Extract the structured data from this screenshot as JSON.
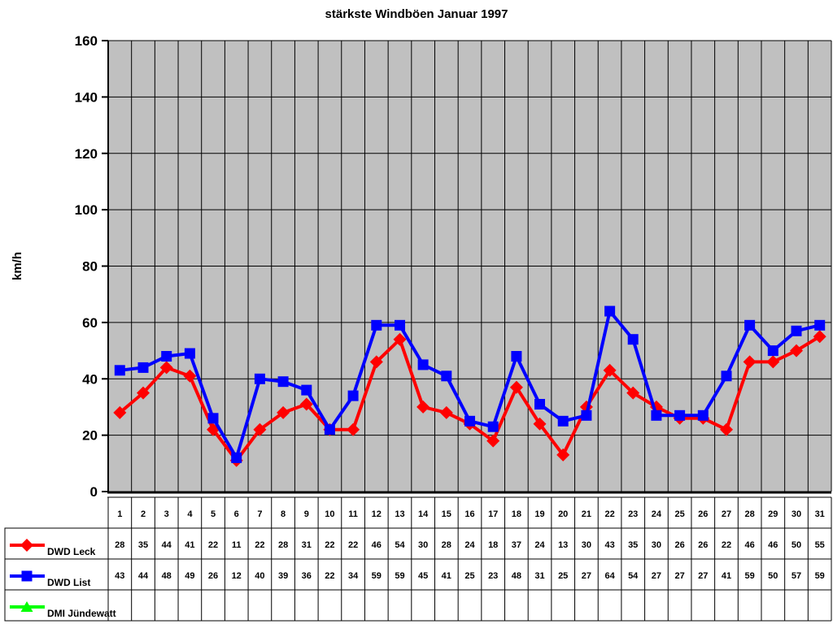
{
  "chart_data": {
    "type": "line",
    "title": "stärkste Windböen Januar 1997",
    "xlabel": "",
    "ylabel": "km/h",
    "ylim": [
      0,
      160
    ],
    "ytick_step": 20,
    "grid": "both",
    "plot_bg": "#c0c0c0",
    "gridline_color": "#000000",
    "legend_position": "bottom-left-table",
    "x": [
      1,
      2,
      3,
      4,
      5,
      6,
      7,
      8,
      9,
      10,
      11,
      12,
      13,
      14,
      15,
      16,
      17,
      18,
      19,
      20,
      21,
      22,
      23,
      24,
      25,
      26,
      27,
      28,
      29,
      30,
      31
    ],
    "series": [
      {
        "name": "DWD Leck",
        "color": "#ff0000",
        "marker": "diamond",
        "values": [
          28,
          35,
          44,
          41,
          22,
          11,
          22,
          28,
          31,
          22,
          22,
          46,
          54,
          30,
          28,
          24,
          18,
          37,
          24,
          13,
          30,
          43,
          35,
          30,
          26,
          26,
          22,
          46,
          46,
          50,
          55
        ]
      },
      {
        "name": "DWD List",
        "color": "#0000ff",
        "marker": "square",
        "values": [
          43,
          44,
          48,
          49,
          26,
          12,
          40,
          39,
          36,
          22,
          34,
          59,
          59,
          45,
          41,
          25,
          23,
          48,
          31,
          25,
          27,
          64,
          54,
          27,
          27,
          27,
          41,
          59,
          50,
          57,
          59
        ]
      },
      {
        "name": "DMI Jündewatt",
        "color": "#00ff00",
        "marker": "triangle",
        "values": []
      }
    ]
  }
}
